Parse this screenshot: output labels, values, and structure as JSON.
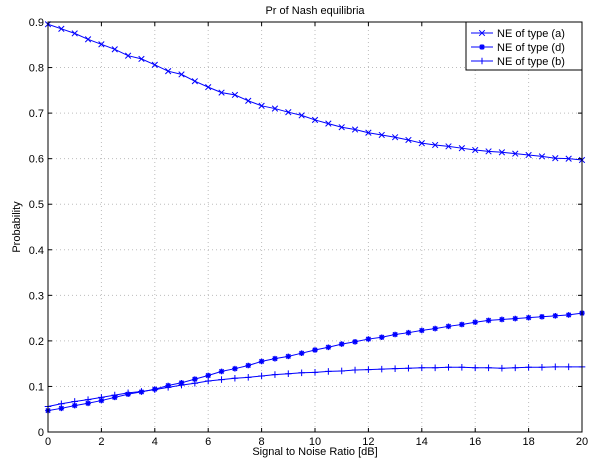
{
  "chart_data": {
    "type": "line",
    "title": "Pr of Nash equilibria",
    "xlabel": "Signal to Noise Ratio [dB]",
    "ylabel": "Probability",
    "xlim": [
      0,
      20
    ],
    "ylim": [
      0,
      0.9
    ],
    "xticks": [
      0,
      2,
      4,
      6,
      8,
      10,
      12,
      14,
      16,
      18,
      20
    ],
    "yticks": [
      0,
      0.1,
      0.2,
      0.3,
      0.4,
      0.5,
      0.6,
      0.7,
      0.8,
      0.9
    ],
    "grid": true,
    "legend_position": "top-right",
    "x": [
      0,
      0.5,
      1,
      1.5,
      2,
      2.5,
      3,
      3.5,
      4,
      4.5,
      5,
      5.5,
      6,
      6.5,
      7,
      7.5,
      8,
      8.5,
      9,
      9.5,
      10,
      10.5,
      11,
      11.5,
      12,
      12.5,
      13,
      13.5,
      14,
      14.5,
      15,
      15.5,
      16,
      16.5,
      17,
      17.5,
      18,
      18.5,
      19,
      19.5,
      20
    ],
    "series": [
      {
        "name": "NE of type (a)",
        "color": "#0000ff",
        "marker": "x",
        "values": [
          0.895,
          0.885,
          0.875,
          0.862,
          0.851,
          0.84,
          0.826,
          0.819,
          0.806,
          0.792,
          0.785,
          0.77,
          0.757,
          0.745,
          0.74,
          0.727,
          0.716,
          0.71,
          0.702,
          0.695,
          0.685,
          0.677,
          0.669,
          0.664,
          0.657,
          0.652,
          0.647,
          0.641,
          0.634,
          0.63,
          0.627,
          0.623,
          0.619,
          0.616,
          0.614,
          0.611,
          0.608,
          0.605,
          0.601,
          0.6,
          0.597
        ]
      },
      {
        "name": "NE of type (d)",
        "color": "#0000ff",
        "marker": "star",
        "values": [
          0.047,
          0.052,
          0.058,
          0.063,
          0.069,
          0.076,
          0.083,
          0.088,
          0.094,
          0.102,
          0.108,
          0.116,
          0.124,
          0.133,
          0.139,
          0.146,
          0.155,
          0.161,
          0.166,
          0.173,
          0.18,
          0.186,
          0.193,
          0.198,
          0.204,
          0.208,
          0.214,
          0.218,
          0.223,
          0.227,
          0.232,
          0.236,
          0.241,
          0.245,
          0.247,
          0.249,
          0.251,
          0.253,
          0.255,
          0.257,
          0.261
        ]
      },
      {
        "name": "NE of type (b)",
        "color": "#0000ff",
        "marker": "plus",
        "values": [
          0.056,
          0.062,
          0.067,
          0.071,
          0.076,
          0.081,
          0.086,
          0.089,
          0.093,
          0.098,
          0.103,
          0.107,
          0.112,
          0.115,
          0.118,
          0.12,
          0.123,
          0.126,
          0.128,
          0.13,
          0.131,
          0.133,
          0.134,
          0.136,
          0.137,
          0.138,
          0.139,
          0.14,
          0.141,
          0.141,
          0.142,
          0.142,
          0.141,
          0.141,
          0.14,
          0.141,
          0.142,
          0.142,
          0.143,
          0.143,
          0.143
        ]
      }
    ]
  }
}
